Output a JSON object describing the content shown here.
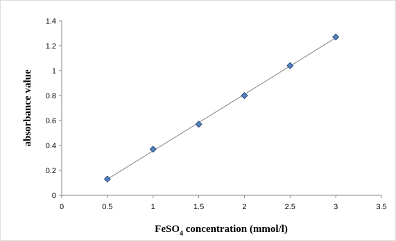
{
  "chart_data": {
    "type": "scatter",
    "title": "",
    "xlabel": {
      "main": "FeSO",
      "subscript": "4",
      "rest": " concentration (mmol/l)"
    },
    "ylabel": "absorbance value",
    "xlim": [
      0,
      3.5
    ],
    "ylim": [
      0,
      1.4
    ],
    "x_ticks": [
      "0",
      "0.5",
      "1",
      "1.5",
      "2",
      "2.5",
      "3",
      "3.5"
    ],
    "y_ticks": [
      "0",
      "0.2",
      "0.4",
      "0.6",
      "0.8",
      "1",
      "1.2",
      "1.4"
    ],
    "grid": false,
    "legend": "none",
    "marker": "diamond",
    "marker_color": "#4f81bd",
    "trendline": "linear",
    "trendline_color": "#7f7f7f",
    "series": [
      {
        "x": [
          0.5,
          1.0,
          1.5,
          2.0,
          2.5,
          3.0
        ],
        "y": [
          0.13,
          0.37,
          0.57,
          0.8,
          1.04,
          1.27
        ]
      }
    ]
  }
}
